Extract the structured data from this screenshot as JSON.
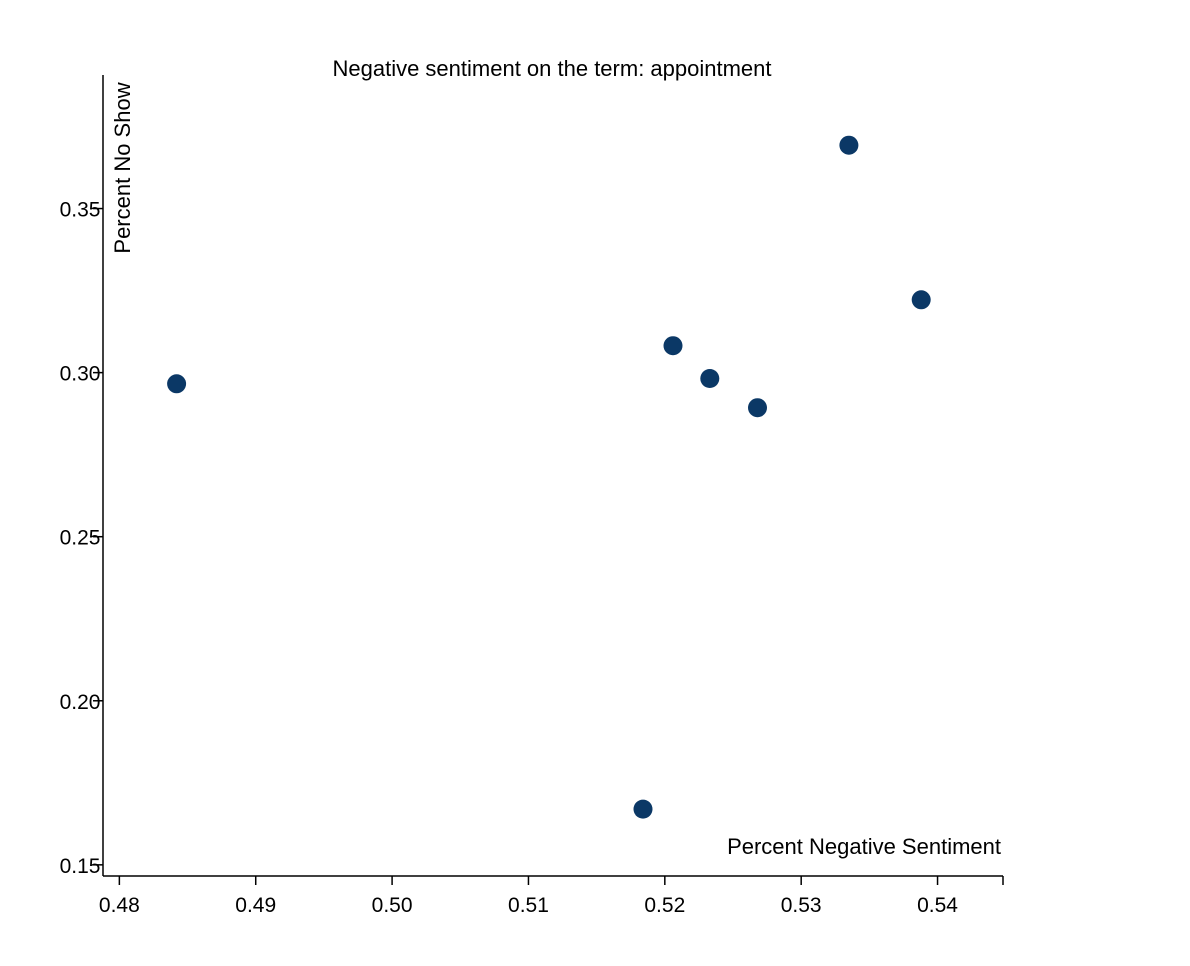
{
  "chart_data": {
    "type": "scatter",
    "title": "Negative sentiment on the term: appointment",
    "xlabel": "Percent Negative Sentiment",
    "ylabel": "Percent No Show",
    "xlim": [
      0.4788,
      0.5448
    ],
    "ylim": [
      0.1466,
      0.3907
    ],
    "x_ticks": [
      "0.48",
      "0.49",
      "0.50",
      "0.51",
      "0.52",
      "0.53",
      "0.54"
    ],
    "y_ticks": [
      "0.15",
      "0.20",
      "0.25",
      "0.30",
      "0.35"
    ],
    "grid": false,
    "marker_color": "#0b3866",
    "series": [
      {
        "points": [
          {
            "x": 0.4842,
            "y": 0.2966
          },
          {
            "x": 0.5184,
            "y": 0.167
          },
          {
            "x": 0.5206,
            "y": 0.3082
          },
          {
            "x": 0.5233,
            "y": 0.2982
          },
          {
            "x": 0.5268,
            "y": 0.2893
          },
          {
            "x": 0.5335,
            "y": 0.3693
          },
          {
            "x": 0.5388,
            "y": 0.3222
          }
        ]
      }
    ]
  }
}
